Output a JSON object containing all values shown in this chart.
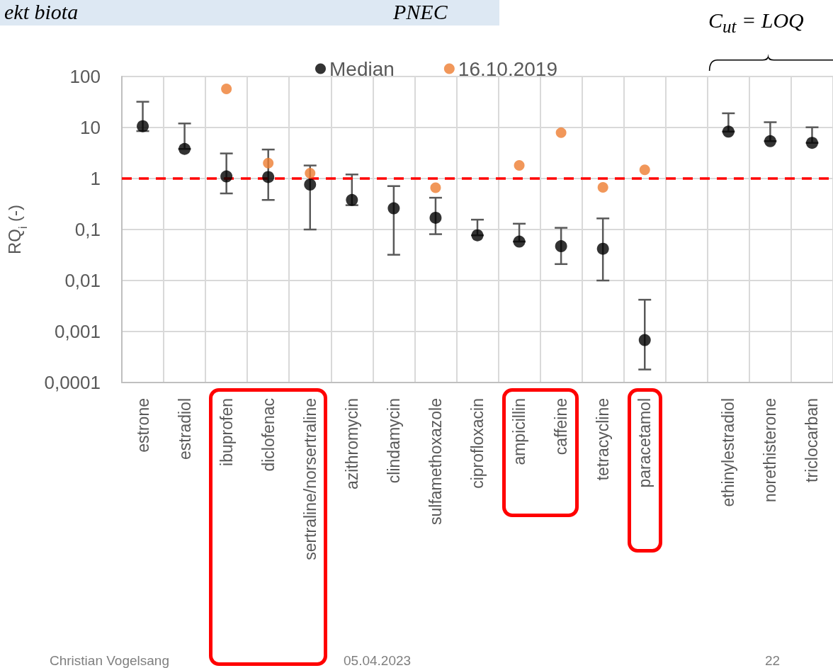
{
  "chart_data": {
    "type": "scatter",
    "categories": [
      "estrone",
      "estradiol",
      "ibuprofen",
      "diclofenac",
      "sertraline/norsertraline",
      "azithromycin",
      "clindamycin",
      "sulfamethoxazole",
      "ciprofloxacin",
      "ampicillin",
      "caffeine",
      "tetracycline",
      "paracetamol",
      null,
      "ethinylestradiol",
      "norethisterone",
      "triclocarban"
    ],
    "series": [
      {
        "name": "Median",
        "color": "#000000",
        "values": [
          10.6,
          3.8,
          1.1,
          1.07,
          0.76,
          0.38,
          0.26,
          0.17,
          0.077,
          0.058,
          0.047,
          0.042,
          0.00068,
          null,
          8.3,
          5.4,
          5.0
        ],
        "errors": [
          [
            8.5,
            32
          ],
          [
            3.8,
            12
          ],
          [
            0.51,
            3.1
          ],
          [
            0.38,
            3.7
          ],
          [
            0.1,
            1.8
          ],
          [
            0.3,
            1.2
          ],
          [
            0.032,
            0.71
          ],
          [
            0.081,
            0.42
          ],
          [
            0.077,
            0.156
          ],
          [
            0.058,
            0.13
          ],
          [
            0.021,
            0.108
          ],
          [
            0.01,
            0.165
          ],
          [
            0.00018,
            0.0042
          ],
          null,
          [
            8.3,
            19
          ],
          [
            5.4,
            12.7
          ],
          [
            5.0,
            10.1
          ]
        ]
      },
      {
        "name": "16.10.2019",
        "color": "#ed7d31",
        "values": [
          null,
          null,
          57,
          2.0,
          1.27,
          null,
          null,
          0.66,
          null,
          1.8,
          7.9,
          0.67,
          1.48,
          null,
          null,
          null,
          null
        ]
      }
    ],
    "ylabel": "RQ$_{i}$ (-)",
    "log": "y",
    "ylim": [
      0.0001,
      100
    ],
    "yticks": [
      {
        "value": 0.0001,
        "label": "0,0001"
      },
      {
        "value": 0.001,
        "label": "0,001"
      },
      {
        "value": 0.01,
        "label": "0,01"
      },
      {
        "value": 0.1,
        "label": "0,1"
      },
      1,
      10,
      100
    ],
    "grid": true,
    "legend": "top",
    "marker": "circle",
    "ref_lines": [
      {
        "axis": "y",
        "value": 1,
        "color": "#ff0000",
        "line_style": "dashed"
      }
    ],
    "annotations": [
      "ekt biota",
      "PNEC",
      "C$_{ut}$ = LOQ",
      "Christian Vogelsang",
      "05.04.2023",
      "22"
    ]
  }
}
